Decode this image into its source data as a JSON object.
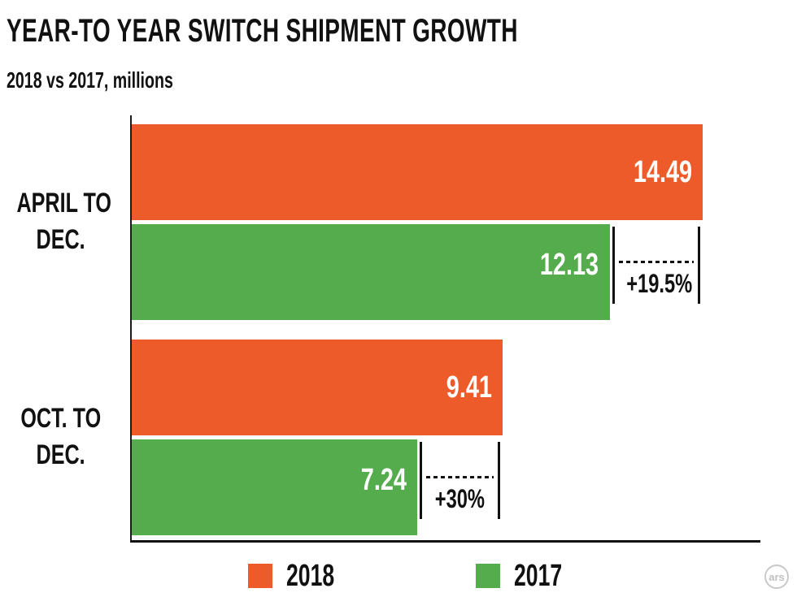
{
  "header": {
    "title": "YEAR-TO YEAR SWITCH SHIPMENT GROWTH",
    "subtitle": "2018 vs 2017, millions"
  },
  "chart_data": {
    "type": "bar",
    "orientation": "horizontal",
    "title": "YEAR-TO YEAR SWITCH SHIPMENT GROWTH",
    "subtitle": "2018 vs 2017, millions",
    "categories": [
      "APRIL TO DEC.",
      "OCT. TO DEC."
    ],
    "category_lines": [
      [
        "APRIL TO",
        "DEC."
      ],
      [
        "OCT. TO",
        "DEC."
      ]
    ],
    "series": [
      {
        "name": "2018",
        "color": "#ED5B2B",
        "values": [
          14.49,
          9.41
        ],
        "labels": [
          "14.49",
          "9.41"
        ]
      },
      {
        "name": "2017",
        "color": "#54AC4C",
        "values": [
          12.13,
          7.24
        ],
        "labels": [
          "12.13",
          "7.24"
        ]
      }
    ],
    "growth_annotations": [
      "+19.5%",
      "+30%"
    ],
    "xlim": [
      0,
      16
    ],
    "grid": false,
    "legend_position": "bottom",
    "value_label_color": "#ffffff",
    "axis_color": "#1a1a1a",
    "annotation_color": "#111111"
  },
  "legend": {
    "items": [
      {
        "label": "2018",
        "color": "#ED5B2B"
      },
      {
        "label": "2017",
        "color": "#54AC4C"
      }
    ]
  },
  "logo": {
    "text": "ars"
  }
}
